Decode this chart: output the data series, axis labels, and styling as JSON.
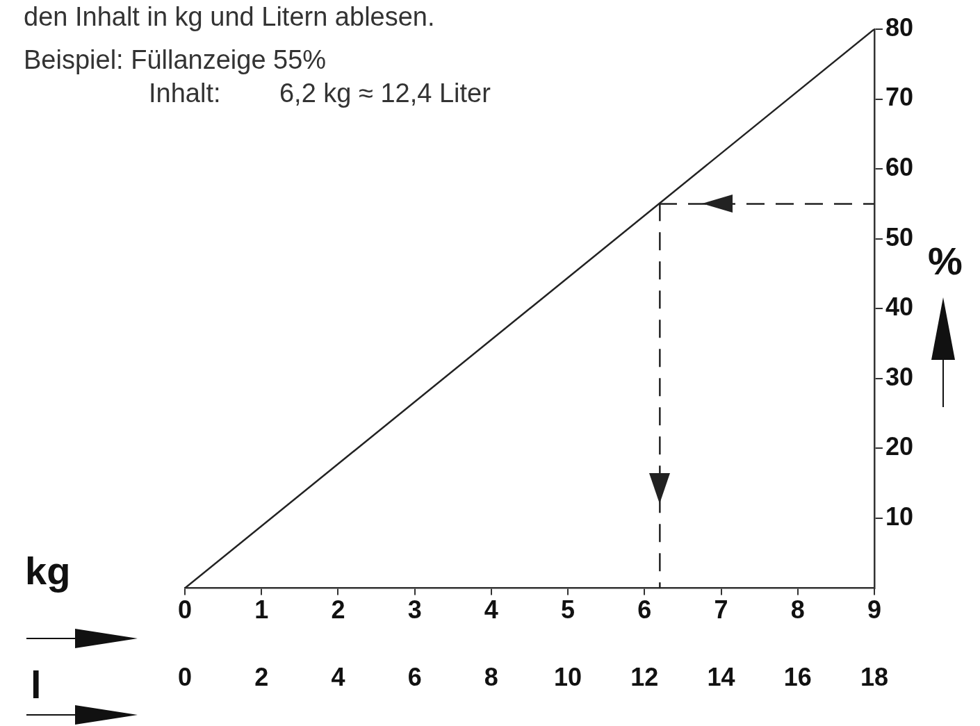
{
  "chart_data": {
    "type": "line",
    "annotations": [
      "den Inhalt in kg und Litern ablesen.",
      "Beispiel: Füllanzeige 55%",
      "Inhalt:        6,2 kg ≈ 12,4 Liter"
    ],
    "xlabel": "kg",
    "x2label": "l",
    "ylabel": "%",
    "x": [
      0,
      9
    ],
    "series": [
      {
        "color": "#222222",
        "values": [
          0,
          80
        ]
      }
    ],
    "xlim": [
      0,
      9
    ],
    "xticks": [
      0,
      1,
      2,
      3,
      4,
      5,
      6,
      7,
      8,
      9
    ],
    "x2lim": [
      0,
      18
    ],
    "x2ticks": [
      0,
      2,
      4,
      6,
      8,
      10,
      12,
      14,
      16,
      18
    ],
    "ylim": [
      0,
      80
    ],
    "yticks": [
      10,
      20,
      30,
      40,
      50,
      60,
      70,
      80
    ],
    "ref_lines": [
      {
        "axis": "y",
        "value": 55,
        "line_style": "dashed",
        "color": "#222222"
      },
      {
        "axis": "x",
        "value": 6.2,
        "line_style": "dashed",
        "color": "#222222"
      }
    ],
    "grid": false,
    "legend": false
  }
}
